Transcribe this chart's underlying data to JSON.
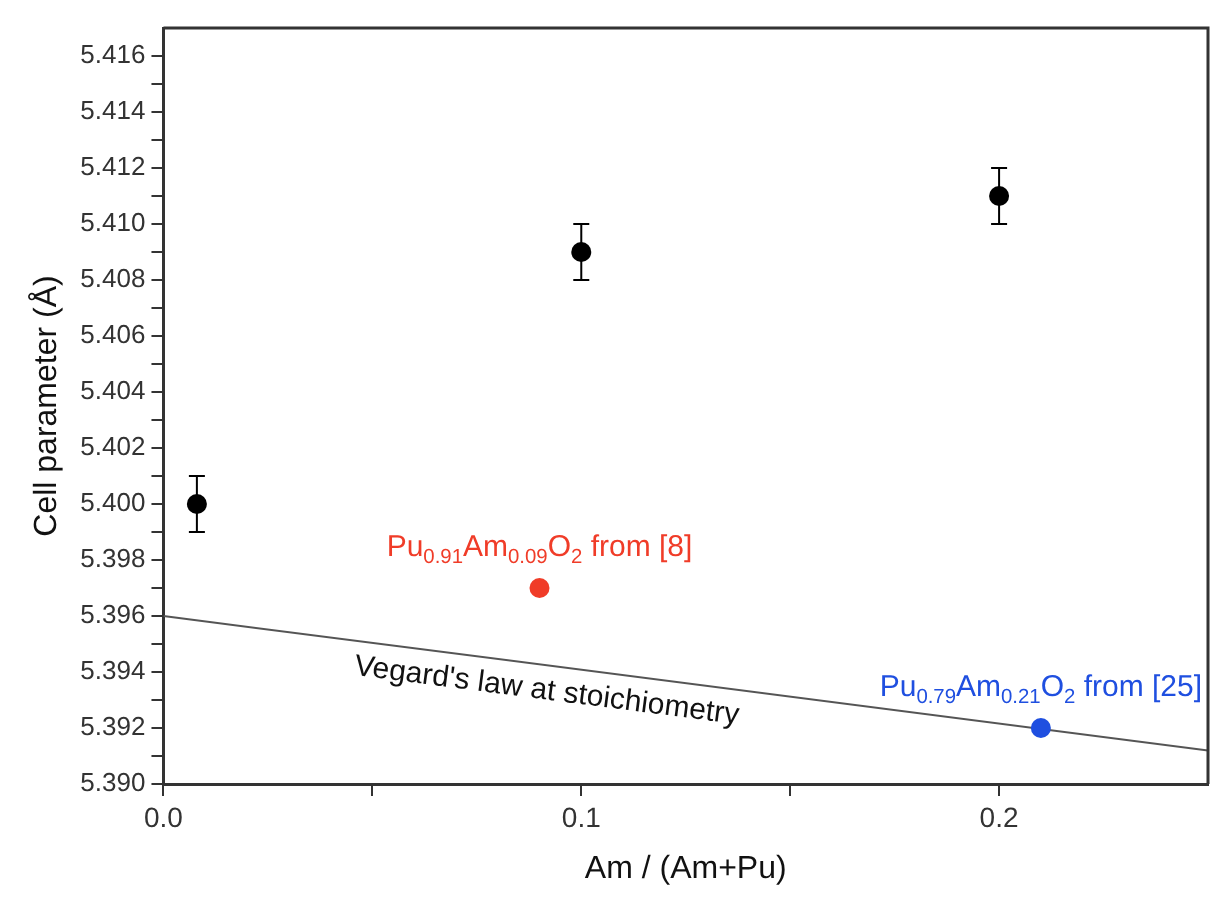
{
  "chart_data": {
    "type": "scatter",
    "xlabel": "Am / (Am+Pu)",
    "ylabel": "Cell parameter (Å)",
    "xlim": [
      0,
      0.25
    ],
    "xticks": [
      {
        "value": 0,
        "label": "0.0"
      },
      {
        "value": 0.05,
        "label": null
      },
      {
        "value": 0.1,
        "label": "0.1"
      },
      {
        "value": 0.15,
        "label": null
      },
      {
        "value": 0.2,
        "label": "0.2"
      }
    ],
    "ylim": [
      5.39,
      5.417
    ],
    "yticks": [
      {
        "value": 5.39,
        "label": "5.390"
      },
      {
        "value": 5.391,
        "label": null
      },
      {
        "value": 5.392,
        "label": "5.392"
      },
      {
        "value": 5.393,
        "label": null
      },
      {
        "value": 5.394,
        "label": "5.394"
      },
      {
        "value": 5.395,
        "label": null
      },
      {
        "value": 5.396,
        "label": "5.396"
      },
      {
        "value": 5.397,
        "label": null
      },
      {
        "value": 5.398,
        "label": "5.398"
      },
      {
        "value": 5.399,
        "label": null
      },
      {
        "value": 5.4,
        "label": "5.400"
      },
      {
        "value": 5.401,
        "label": null
      },
      {
        "value": 5.402,
        "label": "5.402"
      },
      {
        "value": 5.403,
        "label": null
      },
      {
        "value": 5.404,
        "label": "5.404"
      },
      {
        "value": 5.405,
        "label": null
      },
      {
        "value": 5.406,
        "label": "5.406"
      },
      {
        "value": 5.407,
        "label": null
      },
      {
        "value": 5.408,
        "label": "5.408"
      },
      {
        "value": 5.409,
        "label": null
      },
      {
        "value": 5.41,
        "label": "5.410"
      },
      {
        "value": 5.411,
        "label": null
      },
      {
        "value": 5.412,
        "label": "5.412"
      },
      {
        "value": 5.413,
        "label": null
      },
      {
        "value": 5.414,
        "label": "5.414"
      },
      {
        "value": 5.415,
        "label": null
      },
      {
        "value": 5.416,
        "label": "5.416"
      }
    ],
    "grid": false,
    "marker": "circle",
    "series": [
      {
        "color": "#000000",
        "x": [
          0.008,
          0.1,
          0.2
        ],
        "values": [
          5.4,
          5.409,
          5.411
        ],
        "errors": [
          0.001,
          0.001,
          0.001
        ]
      },
      {
        "name": "Pu$_{0.91}$Am$_{0.09}$O$_{2}$ from [8]",
        "color": "#f03c28",
        "x": [
          0.09
        ],
        "values": [
          5.397
        ]
      },
      {
        "name": "Pu$_{0.79}$Am$_{0.21}$O$_{2}$ from [25]",
        "color": "#1f4fe0",
        "x": [
          0.21
        ],
        "values": [
          5.392
        ]
      },
      {
        "type": "line",
        "name": "Vegard's law at stoichiometry",
        "color": "#555555",
        "x": [
          0,
          0.25
        ],
        "values": [
          5.396,
          5.3912
        ],
        "marker": "none"
      }
    ]
  }
}
